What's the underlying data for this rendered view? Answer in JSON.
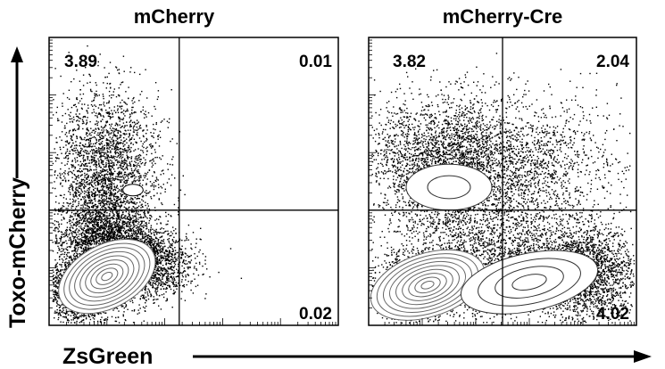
{
  "chart_data": [
    {
      "type": "contour-dot-plot",
      "title": "mCherry",
      "quadrants": {
        "upper_left": "3.89",
        "upper_right": "0.01",
        "lower_left": "",
        "lower_right": "0.02"
      },
      "xlabel": "ZsGreen",
      "ylabel": "Toxo-mCherry",
      "gate": {
        "x_fraction": 0.45,
        "y_fraction": 0.4
      }
    },
    {
      "type": "contour-dot-plot",
      "title": "mCherry-Cre",
      "quadrants": {
        "upper_left": "3.82",
        "upper_right": "2.04",
        "lower_left": "",
        "lower_right": "4.02"
      },
      "xlabel": "ZsGreen",
      "ylabel": "Toxo-mCherry",
      "gate": {
        "x_fraction": 0.5,
        "y_fraction": 0.4
      }
    }
  ],
  "axes": {
    "xlabel": "ZsGreen",
    "ylabel": "Toxo-mCherry"
  },
  "colors": {
    "ink": "#000000",
    "background": "#ffffff"
  }
}
